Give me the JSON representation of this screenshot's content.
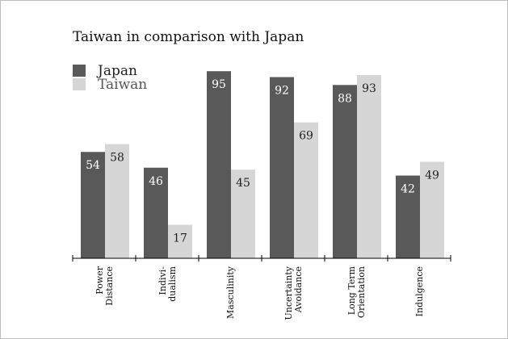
{
  "chart_data": {
    "type": "bar",
    "title": "Taiwan in comparison with Japan",
    "categories": [
      [
        "Power",
        "Distance"
      ],
      [
        "Indivi-",
        "dualism"
      ],
      [
        "Masculinity"
      ],
      [
        "Uncertainty",
        "Avoidance"
      ],
      [
        "Long Term",
        "Orientation"
      ],
      [
        "Indulgence"
      ]
    ],
    "series": [
      {
        "name": "Japan",
        "color": "#595959",
        "label_color": "#ffffff",
        "values": [
          54,
          46,
          95,
          92,
          88,
          42
        ]
      },
      {
        "name": "Taiwan",
        "color": "#d6d6d6",
        "label_color": "#222222",
        "values": [
          58,
          17,
          45,
          69,
          93,
          49
        ]
      }
    ],
    "ylim": [
      0,
      100
    ],
    "grid": false,
    "legend": "top-left"
  }
}
